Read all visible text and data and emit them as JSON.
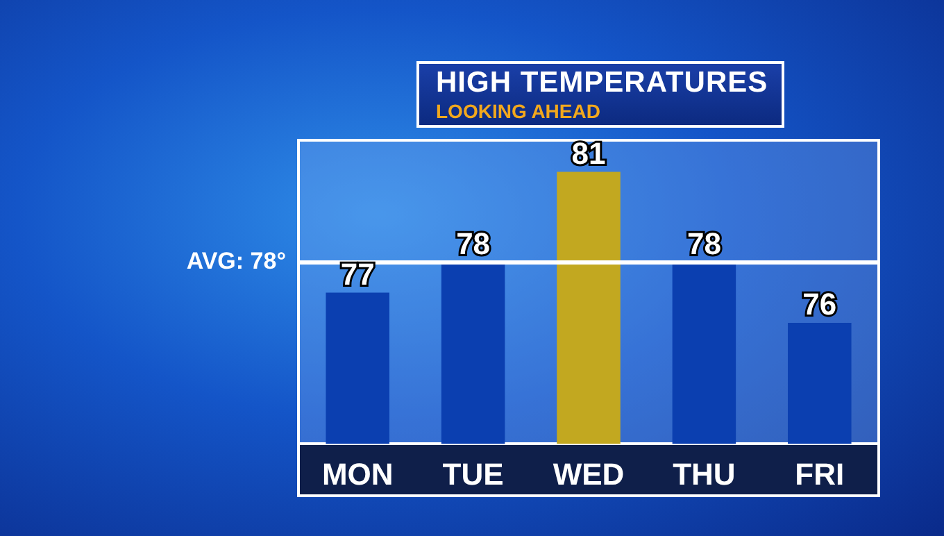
{
  "chart_data": {
    "type": "bar",
    "title": "HIGH TEMPERATURES",
    "subtitle": "LOOKING AHEAD",
    "categories": [
      "MON",
      "TUE",
      "WED",
      "THU",
      "FRI"
    ],
    "values": [
      77,
      78,
      81,
      78,
      76
    ],
    "colors": [
      "#0b3fb0",
      "#0b3fb0",
      "#c2a820",
      "#0b3fb0",
      "#0b3fb0"
    ],
    "ylim": [
      72,
      82
    ],
    "ref_lines": [
      {
        "axis": "y",
        "value": 78,
        "label": "AVG: 78°",
        "color": "#ffffff"
      }
    ],
    "data_labels": true,
    "grid": false,
    "legend": false
  }
}
